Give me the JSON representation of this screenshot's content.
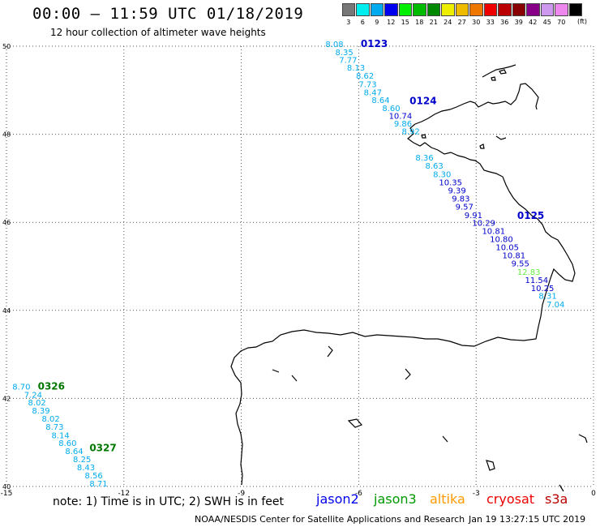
{
  "header": {
    "title": "00:00 – 11:59 UTC 01/18/2019",
    "subtitle": "12 hour collection of altimeter wave heights"
  },
  "legend": {
    "unit": "(ft)",
    "items": [
      {
        "label": "3",
        "color": "#777777"
      },
      {
        "label": "6",
        "color": "#00eeee"
      },
      {
        "label": "9",
        "color": "#00aaee"
      },
      {
        "label": "12",
        "color": "#0000ee"
      },
      {
        "label": "15",
        "color": "#00ee00"
      },
      {
        "label": "18",
        "color": "#00bb00"
      },
      {
        "label": "21",
        "color": "#008800"
      },
      {
        "label": "24",
        "color": "#eeee00"
      },
      {
        "label": "27",
        "color": "#eebb00"
      },
      {
        "label": "30",
        "color": "#ee7700"
      },
      {
        "label": "33",
        "color": "#ee0000"
      },
      {
        "label": "36",
        "color": "#bb0000"
      },
      {
        "label": "39",
        "color": "#880000"
      },
      {
        "label": "42",
        "color": "#880088"
      },
      {
        "label": "45",
        "color": "#cc99ee"
      },
      {
        "label": "70",
        "color": "#ee88ee"
      },
      {
        "label": "",
        "color": "#000000"
      }
    ]
  },
  "axes": {
    "lon_ticks": [
      "-15",
      "-12",
      "-9",
      "-6",
      "-3",
      "0"
    ],
    "lat_ticks": [
      "50",
      "48",
      "46",
      "44",
      "42",
      "40"
    ]
  },
  "passes": [
    {
      "id": "0123",
      "color": "#0000cc",
      "lon": -5.95,
      "lat": 49.98
    },
    {
      "id": "0124",
      "color": "#0000cc",
      "lon": -4.7,
      "lat": 48.68
    },
    {
      "id": "0125",
      "color": "#0000cc",
      "lon": -1.95,
      "lat": 46.08
    },
    {
      "id": "0326",
      "color": "#007700",
      "lon": -14.2,
      "lat": 42.2
    },
    {
      "id": "0327",
      "color": "#007700",
      "lon": -12.88,
      "lat": 40.8
    }
  ],
  "observations": [
    {
      "v": "8.08",
      "c": "#00aaee",
      "lon": -6.85,
      "lat": 49.98
    },
    {
      "v": "8.35",
      "c": "#00aaee",
      "lon": -6.6,
      "lat": 49.8
    },
    {
      "v": "7.77",
      "c": "#00aaee",
      "lon": -6.5,
      "lat": 49.62
    },
    {
      "v": "8.13",
      "c": "#00aaee",
      "lon": -6.3,
      "lat": 49.45
    },
    {
      "v": "8.62",
      "c": "#00aaee",
      "lon": -6.07,
      "lat": 49.26
    },
    {
      "v": "7.73",
      "c": "#00aaee",
      "lon": -6.0,
      "lat": 49.07
    },
    {
      "v": "8.47",
      "c": "#00aaee",
      "lon": -5.87,
      "lat": 48.89
    },
    {
      "v": "8.64",
      "c": "#00aaee",
      "lon": -5.67,
      "lat": 48.71
    },
    {
      "v": "8.60",
      "c": "#00aaee",
      "lon": -5.4,
      "lat": 48.53
    },
    {
      "v": "10.74",
      "c": "#0000cc",
      "lon": -5.23,
      "lat": 48.35
    },
    {
      "v": "9.86",
      "c": "#00aaee",
      "lon": -5.1,
      "lat": 48.18
    },
    {
      "v": "8.92",
      "c": "#00aaee",
      "lon": -4.9,
      "lat": 48.0
    },
    {
      "v": "8.36",
      "c": "#00aaee",
      "lon": -4.55,
      "lat": 47.4
    },
    {
      "v": "8.63",
      "c": "#00aaee",
      "lon": -4.3,
      "lat": 47.22
    },
    {
      "v": "8.30",
      "c": "#00aaee",
      "lon": -4.1,
      "lat": 47.03
    },
    {
      "v": "10.35",
      "c": "#0000cc",
      "lon": -3.95,
      "lat": 46.84
    },
    {
      "v": "9.39",
      "c": "#0000cc",
      "lon": -3.72,
      "lat": 46.66
    },
    {
      "v": "9.83",
      "c": "#0000cc",
      "lon": -3.62,
      "lat": 46.47
    },
    {
      "v": "9.57",
      "c": "#0000cc",
      "lon": -3.53,
      "lat": 46.29
    },
    {
      "v": "9.91",
      "c": "#0000cc",
      "lon": -3.3,
      "lat": 46.1
    },
    {
      "v": "10.29",
      "c": "#0000cc",
      "lon": -3.1,
      "lat": 45.92
    },
    {
      "v": "10.81",
      "c": "#0000cc",
      "lon": -2.85,
      "lat": 45.74
    },
    {
      "v": "10.80",
      "c": "#0000cc",
      "lon": -2.65,
      "lat": 45.55
    },
    {
      "v": "10.05",
      "c": "#0000cc",
      "lon": -2.5,
      "lat": 45.37
    },
    {
      "v": "10.81",
      "c": "#0000cc",
      "lon": -2.33,
      "lat": 45.18
    },
    {
      "v": "9.55",
      "c": "#0000cc",
      "lon": -2.1,
      "lat": 45.0
    },
    {
      "v": "12.83",
      "c": "#66ee44",
      "lon": -1.95,
      "lat": 44.81
    },
    {
      "v": "11.54",
      "c": "#0000cc",
      "lon": -1.75,
      "lat": 44.62
    },
    {
      "v": "10.25",
      "c": "#0000cc",
      "lon": -1.6,
      "lat": 44.44
    },
    {
      "v": "8.31",
      "c": "#00aaee",
      "lon": -1.4,
      "lat": 44.26
    },
    {
      "v": "7.04",
      "c": "#00aaee",
      "lon": -1.2,
      "lat": 44.07
    },
    {
      "v": "8.70",
      "c": "#00aaee",
      "lon": -14.85,
      "lat": 42.2
    },
    {
      "v": "7.24",
      "c": "#00aaee",
      "lon": -14.55,
      "lat": 42.02
    },
    {
      "v": "8.02",
      "c": "#00aaee",
      "lon": -14.45,
      "lat": 41.84
    },
    {
      "v": "8.39",
      "c": "#00aaee",
      "lon": -14.35,
      "lat": 41.66
    },
    {
      "v": "8.02",
      "c": "#00aaee",
      "lon": -14.1,
      "lat": 41.47
    },
    {
      "v": "8.73",
      "c": "#00aaee",
      "lon": -14.0,
      "lat": 41.29
    },
    {
      "v": "8.14",
      "c": "#00aaee",
      "lon": -13.85,
      "lat": 41.1
    },
    {
      "v": "8.60",
      "c": "#00aaee",
      "lon": -13.67,
      "lat": 40.92
    },
    {
      "v": "8.64",
      "c": "#00aaee",
      "lon": -13.5,
      "lat": 40.74
    },
    {
      "v": "8.25",
      "c": "#00aaee",
      "lon": -13.3,
      "lat": 40.55
    },
    {
      "v": "8.43",
      "c": "#00aaee",
      "lon": -13.2,
      "lat": 40.37
    },
    {
      "v": "8.56",
      "c": "#00aaee",
      "lon": -13.0,
      "lat": 40.18
    },
    {
      "v": "8.71",
      "c": "#00aaee",
      "lon": -12.88,
      "lat": 40.0
    }
  ],
  "footer": {
    "note": "note: 1) Time is in UTC; 2) SWH is in feet",
    "satellites": [
      {
        "label": "jason2",
        "color": "#0000ee"
      },
      {
        "label": "jason3",
        "color": "#009900"
      },
      {
        "label": "altika",
        "color": "#ff9900"
      },
      {
        "label": "cryosat",
        "color": "#ee0000"
      },
      {
        "label": "s3a",
        "color": "#bb0000"
      }
    ],
    "credit": "NOAA/NESDIS Center for Satellite Applications and Research",
    "timestamp": "Jan 19 13:27:15 UTC 2019"
  }
}
